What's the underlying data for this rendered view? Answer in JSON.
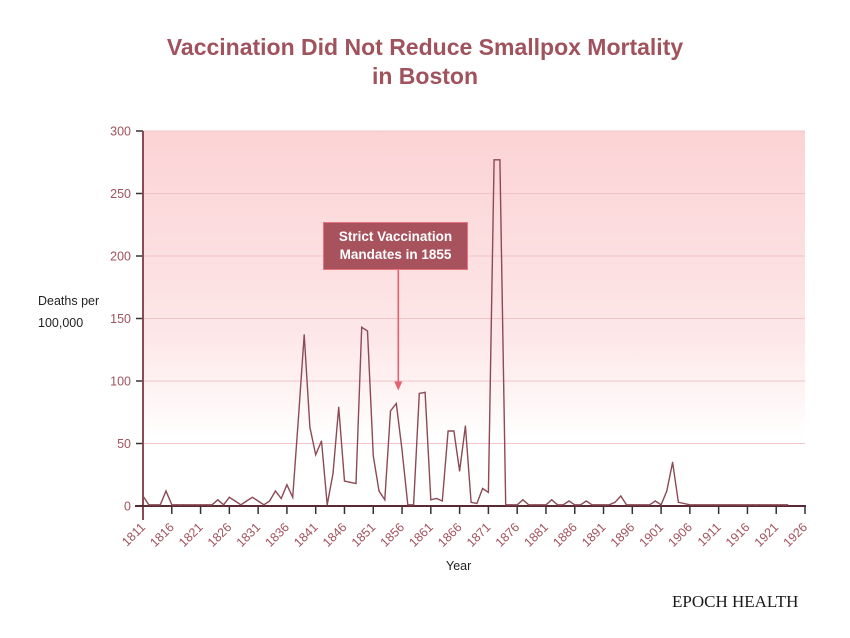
{
  "chart_data": {
    "type": "line",
    "title_line1": "Vaccination Did Not Reduce Smallpox Mortality",
    "title_line2": "in Boston",
    "ylabel_line1": "Deaths per",
    "ylabel_line2": "100,000",
    "xlabel": "Year",
    "xlim": [
      1811,
      1926
    ],
    "ylim": [
      0,
      300
    ],
    "yticks": [
      0,
      50,
      100,
      150,
      200,
      250,
      300
    ],
    "xticks": [
      1811,
      1816,
      1821,
      1826,
      1831,
      1836,
      1841,
      1846,
      1851,
      1856,
      1861,
      1866,
      1871,
      1876,
      1881,
      1886,
      1891,
      1896,
      1901,
      1906,
      1911,
      1916,
      1921,
      1926
    ],
    "grid": true,
    "series": [
      {
        "name": "Deaths per 100,000",
        "color": "#8c4a55",
        "x": [
          1811,
          1812,
          1813,
          1814,
          1815,
          1816,
          1817,
          1818,
          1819,
          1820,
          1821,
          1822,
          1823,
          1824,
          1825,
          1826,
          1827,
          1828,
          1829,
          1830,
          1831,
          1832,
          1833,
          1834,
          1835,
          1836,
          1837,
          1838,
          1839,
          1840,
          1841,
          1842,
          1843,
          1844,
          1845,
          1846,
          1847,
          1848,
          1849,
          1850,
          1851,
          1852,
          1853,
          1854,
          1855,
          1856,
          1857,
          1858,
          1859,
          1860,
          1861,
          1862,
          1863,
          1864,
          1865,
          1866,
          1867,
          1868,
          1869,
          1870,
          1871,
          1872,
          1873,
          1874,
          1875,
          1876,
          1877,
          1878,
          1879,
          1880,
          1881,
          1882,
          1883,
          1884,
          1885,
          1886,
          1887,
          1888,
          1889,
          1890,
          1891,
          1892,
          1893,
          1894,
          1895,
          1896,
          1897,
          1898,
          1899,
          1900,
          1901,
          1902,
          1903,
          1904,
          1905,
          1906,
          1907,
          1908,
          1909,
          1910,
          1911,
          1912,
          1913,
          1914,
          1915,
          1916,
          1917,
          1918,
          1919,
          1920,
          1921,
          1922,
          1923
        ],
        "y": [
          8,
          1,
          1,
          1,
          12,
          1,
          1,
          1,
          1,
          1,
          1,
          1,
          1,
          5,
          1,
          7,
          4,
          1,
          4,
          7,
          4,
          1,
          4,
          12,
          6,
          17,
          7,
          70,
          137,
          63,
          41,
          52,
          1,
          26,
          79,
          20,
          19,
          18,
          143,
          140,
          40,
          12,
          5,
          76,
          82,
          45,
          1,
          1,
          90,
          91,
          5,
          6,
          4,
          60,
          60,
          28,
          64,
          3,
          2,
          14,
          11,
          277,
          277,
          1,
          1,
          1,
          5,
          1,
          1,
          1,
          1,
          5,
          1,
          1,
          4,
          1,
          1,
          4,
          1,
          1,
          1,
          1,
          3,
          8,
          1,
          1,
          1,
          1,
          1,
          4,
          1,
          12,
          35,
          3,
          2,
          1,
          1,
          1,
          1,
          1,
          1,
          1,
          1,
          1,
          1,
          1,
          1,
          1,
          1,
          1,
          1,
          1,
          1
        ]
      }
    ],
    "annotation": {
      "line1": "Strict Vaccination",
      "line2": "Mandates in 1855",
      "target_year": 1855,
      "target_value": 82,
      "box_color": "#a8525e",
      "arrow_color": "#e8606e"
    },
    "background_gradient": {
      "top": "#fcd3d5",
      "bottom": "#ffffff"
    }
  },
  "brand": "EPOCH HEALTH"
}
